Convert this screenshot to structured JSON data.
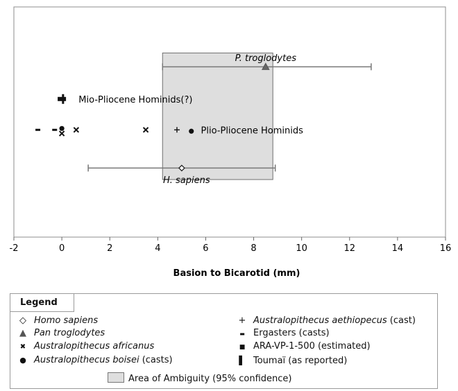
{
  "chart_data": {
    "type": "scatter",
    "xlabel": "Basion to Bicarotid (mm)",
    "xlim": [
      -2,
      16
    ],
    "xticks": [
      -2,
      0,
      2,
      4,
      6,
      8,
      10,
      12,
      14,
      16
    ],
    "yticks_visible": false,
    "grid": false,
    "ambiguity_area": {
      "x0": 4.2,
      "x1": 8.8,
      "y0": 1.25,
      "y1": 4.0
    },
    "series": [
      {
        "name": "Homo sapiens",
        "marker": "diamond",
        "points": [
          [
            5.0,
            1.5
          ]
        ],
        "error_x": [
          1.1,
          8.9
        ]
      },
      {
        "name": "Pan troglodytes",
        "marker": "triangle",
        "points": [
          [
            8.5,
            3.7
          ]
        ],
        "error_x": [
          4.2,
          12.9
        ]
      },
      {
        "name": "Australopithecus africanus",
        "marker": "x",
        "points": [
          [
            0.0,
            2.25
          ],
          [
            0.6,
            2.33
          ],
          [
            3.5,
            2.33
          ]
        ]
      },
      {
        "name": "Australopithecus boisei",
        "marker": "circle",
        "points": [
          [
            0.0,
            2.36
          ],
          [
            5.4,
            2.3
          ]
        ]
      },
      {
        "name": "Australopithecus aethiopecus",
        "marker": "plus",
        "points": [
          [
            4.8,
            2.33
          ]
        ]
      },
      {
        "name": "Ergasters",
        "marker": "dash",
        "points": [
          [
            -1.0,
            2.33
          ],
          [
            -0.3,
            2.33
          ]
        ]
      },
      {
        "name": "ARA-VP-1-500",
        "marker": "bar",
        "points": [
          [
            0.0,
            3.0
          ]
        ]
      },
      {
        "name": "Toumaï",
        "marker": "vline",
        "points": [
          [
            0.05,
            3.0
          ]
        ]
      }
    ],
    "annotations": [
      {
        "text": "P. troglodytes",
        "x": 8.5,
        "y": 3.9,
        "italic": true
      },
      {
        "text": "Mio-Pliocene Hominids(?)",
        "x": 0.7,
        "y": 3.0,
        "italic": false
      },
      {
        "text": "Plio-Pliocene Hominids",
        "x": 5.8,
        "y": 2.33,
        "italic": false
      },
      {
        "text": "H. sapiens",
        "x": 5.2,
        "y": 1.25,
        "italic": true
      }
    ],
    "ylim": [
      0,
      5
    ]
  },
  "legend": {
    "title": "Legend",
    "items": [
      {
        "symbol": "◇",
        "name": "Homo sapiens",
        "suffix": ""
      },
      {
        "symbol": "▲",
        "name": "Pan troglodytes",
        "suffix": ""
      },
      {
        "symbol": "✖",
        "name": "Australopithecus africanus",
        "suffix": ""
      },
      {
        "symbol": "●",
        "name": "Australopithecus boisei",
        "suffix": " (casts)"
      },
      {
        "symbol": "+",
        "name": "Australopithecus aethiopecus",
        "suffix": " (cast)"
      },
      {
        "symbol": "▬",
        "name": "",
        "suffix": "Ergasters (casts)"
      },
      {
        "symbol": "■",
        "name": "",
        "suffix": "ARA-VP-1-500 (estimated)"
      },
      {
        "symbol": "▌",
        "name": "",
        "suffix": "Toumaï (as reported)"
      }
    ],
    "area_label": "Area of Ambiguity (95% confidence)"
  }
}
